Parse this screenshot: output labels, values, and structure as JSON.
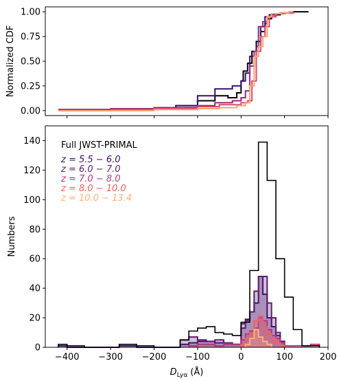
{
  "chart_data": [
    {
      "type": "line",
      "step": true,
      "xlim": [
        -450,
        200
      ],
      "ylim": [
        -0.05,
        1.05
      ],
      "ylabel": "Normalized CDF",
      "x_ticks": [
        -400,
        -300,
        -200,
        -100,
        0,
        100,
        200
      ],
      "y_ticks": [
        0.0,
        0.25,
        0.5,
        0.75,
        1.0
      ],
      "y_tick_labels": [
        "0.00",
        "0.25",
        "0.50",
        "0.75",
        "1.00"
      ],
      "grid": false,
      "series": [
        {
          "color": "#000000",
          "x": [
            -420,
            -330,
            -250,
            -200,
            -150,
            -100,
            -60,
            -30,
            -10,
            0,
            5,
            15,
            25,
            35,
            45,
            55,
            60,
            70,
            90,
            120,
            155
          ],
          "y": [
            0.01,
            0.01,
            0.02,
            0.03,
            0.05,
            0.1,
            0.15,
            0.13,
            0.18,
            0.3,
            0.4,
            0.48,
            0.6,
            0.7,
            0.8,
            0.88,
            0.93,
            0.97,
            0.99,
            1.0,
            1.0
          ]
        },
        {
          "color": "#3b0f70",
          "x": [
            -420,
            -300,
            -200,
            -150,
            -100,
            -60,
            -20,
            0,
            10,
            20,
            35,
            45,
            55,
            65,
            80,
            100,
            120
          ],
          "y": [
            0.01,
            0.01,
            0.03,
            0.05,
            0.15,
            0.22,
            0.25,
            0.3,
            0.38,
            0.55,
            0.65,
            0.85,
            0.95,
            0.97,
            0.98,
            0.99,
            1.0
          ]
        },
        {
          "color": "#8c2981",
          "x": [
            -420,
            -300,
            -200,
            -100,
            -60,
            -20,
            0,
            10,
            20,
            30,
            40,
            50,
            60,
            80,
            100,
            120
          ],
          "y": [
            0.01,
            0.02,
            0.03,
            0.05,
            0.08,
            0.1,
            0.13,
            0.2,
            0.45,
            0.6,
            0.85,
            0.9,
            0.95,
            0.98,
            0.99,
            1.0
          ]
        },
        {
          "color": "#de4968",
          "x": [
            -420,
            -300,
            -200,
            -100,
            -50,
            0,
            15,
            25,
            35,
            45,
            55,
            65,
            80,
            100,
            120
          ],
          "y": [
            0.0,
            0.01,
            0.02,
            0.04,
            0.06,
            0.08,
            0.1,
            0.3,
            0.6,
            0.75,
            0.85,
            0.95,
            0.98,
            0.99,
            1.0
          ]
        },
        {
          "color": "#fe9f6d",
          "x": [
            -420,
            -200,
            -100,
            -50,
            -10,
            10,
            20,
            30,
            40,
            50,
            60,
            70,
            90,
            110,
            120
          ],
          "y": [
            0.0,
            0.01,
            0.02,
            0.03,
            0.05,
            0.08,
            0.25,
            0.55,
            0.65,
            0.75,
            0.95,
            0.98,
            0.99,
            1.0,
            1.0
          ]
        }
      ]
    },
    {
      "type": "bar",
      "histogram": true,
      "xlim": [
        -450,
        200
      ],
      "ylim": [
        0,
        150
      ],
      "xlabel_main": "D",
      "xlabel_sub": "Lyα",
      "xlabel_unit": " (Å)",
      "ylabel": "Numbers",
      "x_ticks": [
        -400,
        -300,
        -200,
        -100,
        0,
        100,
        200
      ],
      "x_tick_labels": [
        "−400",
        "−300",
        "−200",
        "−100",
        "0",
        "100",
        "200"
      ],
      "y_ticks": [
        0,
        20,
        40,
        60,
        80,
        100,
        120,
        140
      ],
      "grid": false,
      "legend_position": "upper-left",
      "full_series": {
        "name": "Full JWST-PRIMAL",
        "color": "#000000",
        "edges": [
          -420,
          -400,
          -380,
          -360,
          -340,
          -320,
          -300,
          -280,
          -260,
          -240,
          -220,
          -200,
          -180,
          -160,
          -140,
          -120,
          -100,
          -80,
          -60,
          -40,
          -20,
          0,
          20,
          40,
          60,
          80,
          100,
          120,
          140,
          160,
          180
        ],
        "counts": [
          2,
          1,
          1,
          0,
          0,
          0,
          0,
          2,
          2,
          1,
          1,
          0,
          0,
          0,
          5,
          11,
          13,
          14,
          10,
          9,
          8,
          17,
          52,
          139,
          113,
          60,
          34,
          12,
          1,
          1
        ]
      },
      "series": [
        {
          "name": "z = 5.5 − 6.0",
          "color": "#3b0f70",
          "edges": [
            -420,
            -400,
            -280,
            -260,
            -240,
            -220,
            -140,
            -120,
            -100,
            -80,
            -60,
            -40,
            -20,
            0,
            10,
            20,
            30,
            40,
            50,
            60,
            70,
            80,
            90,
            100
          ],
          "counts": [
            1,
            0,
            1,
            1,
            0,
            0,
            2,
            3,
            4,
            4,
            3,
            3,
            2,
            16,
            19,
            24,
            30,
            48,
            36,
            20,
            14,
            8,
            4
          ]
        },
        {
          "name": "z = 6.0 − 7.0",
          "color": "#5e1c6e",
          "edges": [
            -140,
            -120,
            -100,
            -80,
            -60,
            -40,
            -20,
            0,
            10,
            20,
            30,
            40,
            50,
            60,
            70,
            80,
            90,
            100
          ],
          "counts": [
            5,
            7,
            5,
            4,
            5,
            3,
            2,
            13,
            18,
            24,
            38,
            48,
            48,
            30,
            20,
            10,
            4
          ]
        },
        {
          "name": "z = 7.0 − 8.0",
          "color": "#b73779",
          "edges": [
            -120,
            -100,
            -60,
            -40,
            0,
            10,
            20,
            30,
            40,
            50,
            60,
            70,
            80,
            90,
            100,
            160,
            180
          ],
          "counts": [
            1,
            2,
            1,
            2,
            5,
            9,
            11,
            13,
            20,
            18,
            12,
            8,
            6,
            3,
            1,
            2
          ]
        },
        {
          "name": "z = 8.0 − 10.0",
          "color": "#f1605d",
          "edges": [
            0,
            10,
            20,
            30,
            40,
            50,
            60,
            70,
            80,
            90,
            100
          ],
          "counts": [
            2,
            6,
            10,
            18,
            21,
            14,
            9,
            6,
            3,
            1
          ]
        },
        {
          "name": "z = 10.0 − 13.4",
          "color": "#feb078",
          "edges": [
            10,
            20,
            30,
            40,
            50,
            60,
            70
          ],
          "counts": [
            2,
            6,
            12,
            7,
            4,
            2
          ]
        }
      ]
    }
  ]
}
